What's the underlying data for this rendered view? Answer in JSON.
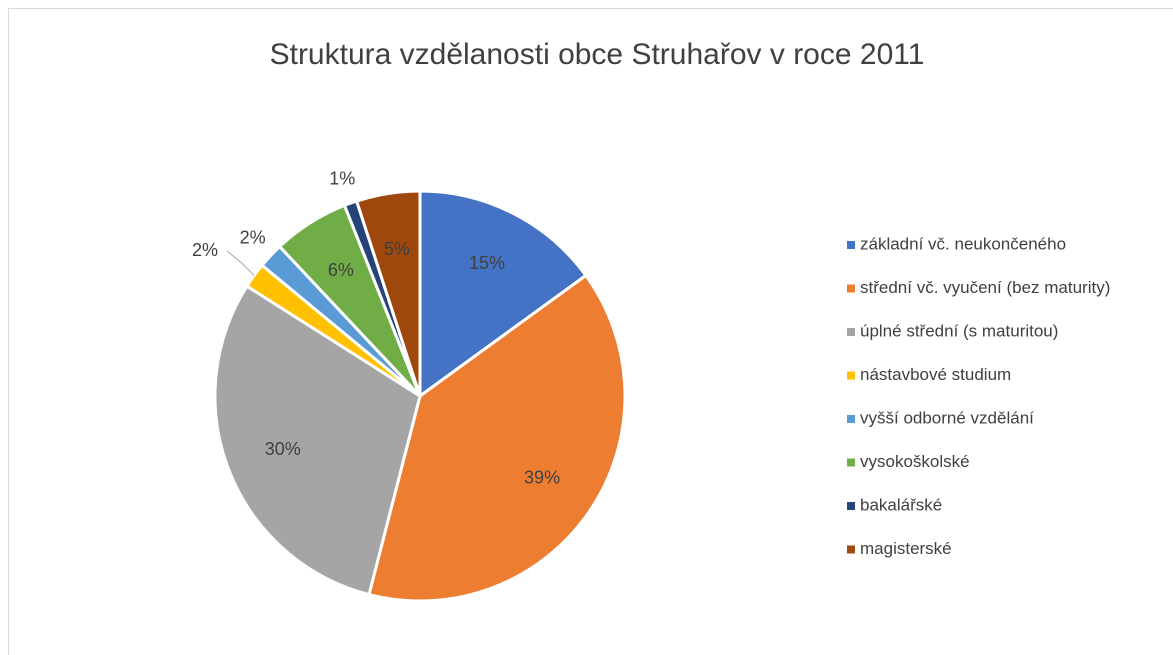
{
  "chart_data": {
    "type": "pie",
    "title": "Struktura vzdělanosti obce Struhařov v roce 2011",
    "categories": [
      "základní vč. neukončeného",
      "střední vč. vyučení (bez maturity)",
      "úplné střední (s maturitou)",
      "nástavbové studium",
      "vyšší odborné vzdělání",
      "vysokoškolské",
      "bakalářské",
      "magisterské"
    ],
    "values": [
      15,
      39,
      30,
      2,
      2,
      6,
      1,
      5
    ],
    "value_labels": [
      "15%",
      "39%",
      "30%",
      "2%",
      "2%",
      "6%",
      "1%",
      "5%"
    ],
    "colors": [
      "#4472c4",
      "#ed7d31",
      "#a5a5a5",
      "#ffc000",
      "#5b9bd5",
      "#70ad47",
      "#264478",
      "#9e480e"
    ],
    "legend": "right"
  }
}
